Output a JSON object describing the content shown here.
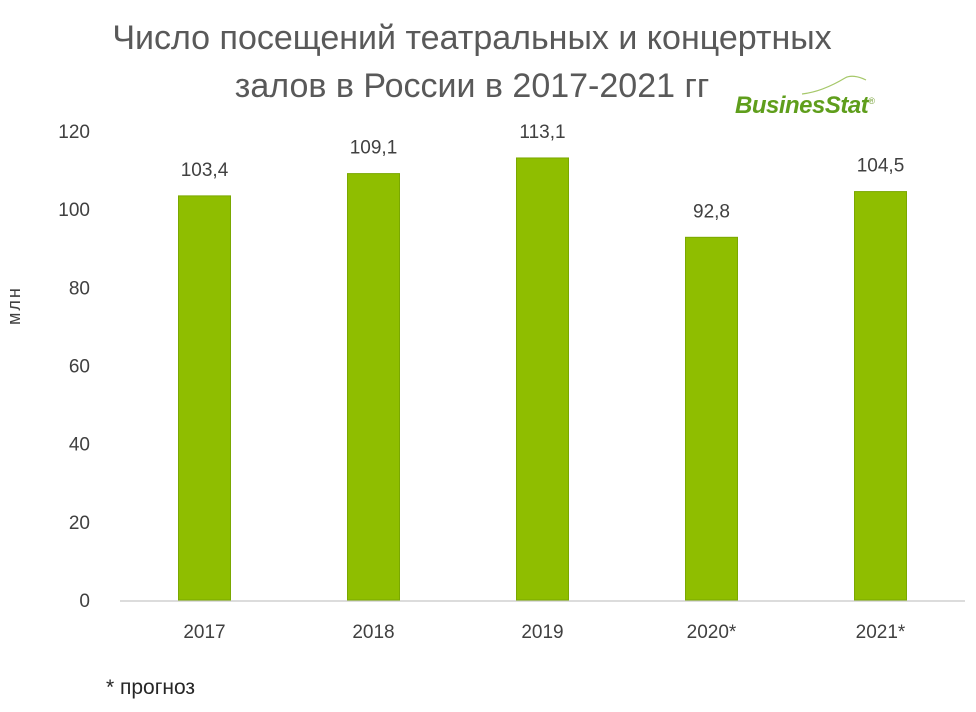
{
  "chart_data": {
    "type": "bar",
    "title_lines": [
      "Число посещений театральных и концертных",
      "залов в России в 2017-2021 гг"
    ],
    "ylabel": "млн",
    "categories": [
      "2017",
      "2018",
      "2019",
      "2020*",
      "2021*"
    ],
    "values": [
      103.4,
      109.1,
      113.1,
      92.8,
      104.5
    ],
    "value_labels": [
      "103,4",
      "109,1",
      "113,1",
      "92,8",
      "104,5"
    ],
    "yticks": [
      "0",
      "20",
      "40",
      "60",
      "80",
      "100",
      "120"
    ],
    "ylim": [
      0,
      120
    ],
    "bar_color": "#8fbe00",
    "bar_edge_color": "#7aa800",
    "grid": false,
    "legend": "none"
  },
  "brand": {
    "name_a": "Busines",
    "name_b": "Stat",
    "mark": "®"
  },
  "footnote": "* прогноз"
}
